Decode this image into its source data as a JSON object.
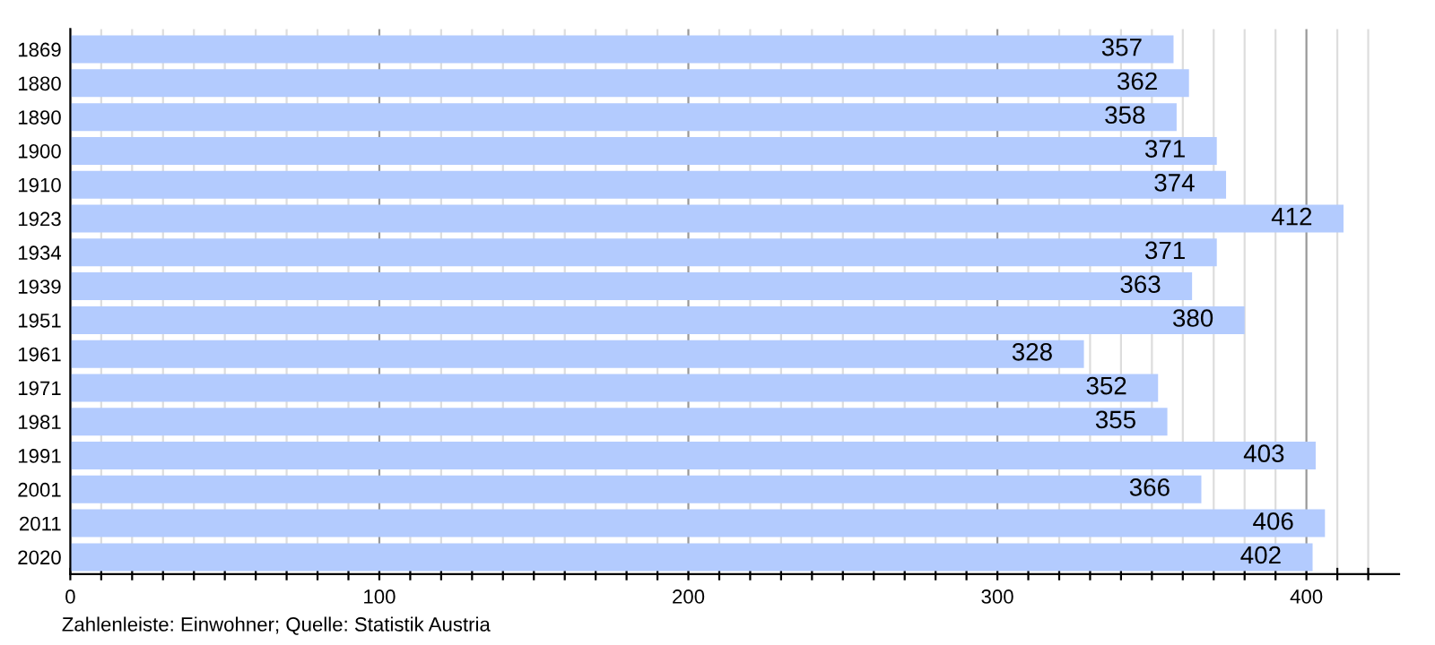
{
  "chart_data": {
    "type": "bar",
    "orientation": "horizontal",
    "categories": [
      "1869",
      "1880",
      "1890",
      "1900",
      "1910",
      "1923",
      "1934",
      "1939",
      "1951",
      "1961",
      "1971",
      "1981",
      "1991",
      "2001",
      "2011",
      "2020"
    ],
    "values": [
      357,
      362,
      358,
      371,
      374,
      412,
      371,
      363,
      380,
      328,
      352,
      355,
      403,
      366,
      406,
      402
    ],
    "color": "#b3cbfe",
    "data_labels": true,
    "grid": "x",
    "xlim": [
      0,
      430
    ],
    "xticks": [
      0,
      {
        "value": 10,
        "label": null
      },
      {
        "value": 20,
        "label": null
      },
      {
        "value": 30,
        "label": null
      },
      {
        "value": 40,
        "label": null
      },
      {
        "value": 50,
        "label": null
      },
      {
        "value": 60,
        "label": null
      },
      {
        "value": 70,
        "label": null
      },
      {
        "value": 80,
        "label": null
      },
      {
        "value": 90,
        "label": null
      },
      100,
      {
        "value": 110,
        "label": null
      },
      {
        "value": 120,
        "label": null
      },
      {
        "value": 130,
        "label": null
      },
      {
        "value": 140,
        "label": null
      },
      {
        "value": 150,
        "label": null
      },
      {
        "value": 160,
        "label": null
      },
      {
        "value": 170,
        "label": null
      },
      {
        "value": 180,
        "label": null
      },
      {
        "value": 190,
        "label": null
      },
      200,
      {
        "value": 210,
        "label": null
      },
      {
        "value": 220,
        "label": null
      },
      {
        "value": 230,
        "label": null
      },
      {
        "value": 240,
        "label": null
      },
      {
        "value": 250,
        "label": null
      },
      {
        "value": 260,
        "label": null
      },
      {
        "value": 270,
        "label": null
      },
      {
        "value": 280,
        "label": null
      },
      {
        "value": 290,
        "label": null
      },
      300,
      {
        "value": 310,
        "label": null
      },
      {
        "value": 320,
        "label": null
      },
      {
        "value": 330,
        "label": null
      },
      {
        "value": 340,
        "label": null
      },
      {
        "value": 350,
        "label": null
      },
      {
        "value": 360,
        "label": null
      },
      {
        "value": 370,
        "label": null
      },
      {
        "value": 380,
        "label": null
      },
      {
        "value": 390,
        "label": null
      },
      400,
      {
        "value": 410,
        "label": null
      },
      {
        "value": 420,
        "label": null
      }
    ],
    "annotations": [
      "Zahlenleiste: Einwohner; Quelle: Statistik Austria"
    ]
  }
}
